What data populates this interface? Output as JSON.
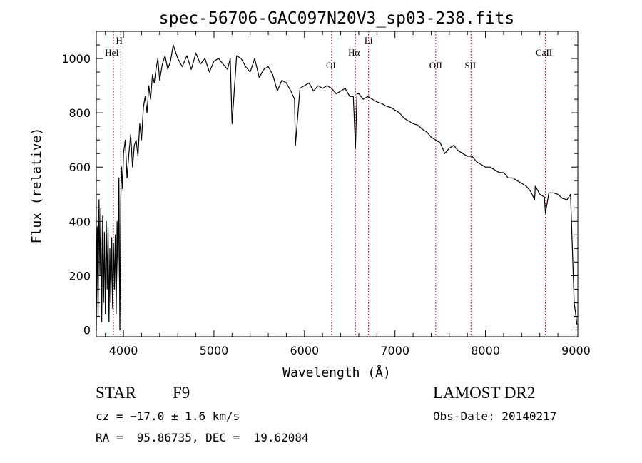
{
  "chart_data": {
    "type": "line",
    "title": "spec-56706-GAC097N20V3_sp03-238.fits",
    "xlabel": "Wavelength (Å)",
    "ylabel": "Flux (relative)",
    "xlim": [
      3700,
      9020
    ],
    "ylim": [
      -25,
      1100
    ],
    "xticks": [
      4000,
      5000,
      6000,
      7000,
      8000,
      9000
    ],
    "yticks": [
      0,
      200,
      400,
      600,
      800,
      1000
    ],
    "xtick_labels": [
      "4000",
      "5000",
      "6000",
      "7000",
      "8000",
      "9000"
    ],
    "ytick_labels": [
      "0",
      "200",
      "400",
      "600",
      "800",
      "1000"
    ],
    "grid": false,
    "line_color": "#000000",
    "marker_color": "#8b0000",
    "series": [
      {
        "x": [
          3700,
          3710,
          3720,
          3730,
          3740,
          3750,
          3760,
          3770,
          3780,
          3790,
          3800,
          3810,
          3820,
          3830,
          3840,
          3850,
          3860,
          3870,
          3880,
          3890,
          3900,
          3910,
          3920,
          3930,
          3940,
          3950,
          3960,
          3970,
          3980,
          3990,
          4000,
          4020,
          4040,
          4060,
          4080,
          4100,
          4120,
          4140,
          4160,
          4180,
          4200,
          4220,
          4240,
          4260,
          4280,
          4300,
          4320,
          4340,
          4360,
          4380,
          4400,
          4430,
          4460,
          4490,
          4520,
          4550,
          4600,
          4650,
          4700,
          4750,
          4800,
          4850,
          4900,
          4950,
          5000,
          5050,
          5100,
          5150,
          5180,
          5200,
          5250,
          5300,
          5350,
          5400,
          5450,
          5500,
          5550,
          5600,
          5650,
          5700,
          5750,
          5800,
          5850,
          5890,
          5900,
          5950,
          6000,
          6050,
          6100,
          6150,
          6200,
          6250,
          6300,
          6350,
          6400,
          6450,
          6500,
          6540,
          6563,
          6580,
          6600,
          6650,
          6700,
          6750,
          6800,
          6850,
          6900,
          6950,
          7000,
          7050,
          7100,
          7150,
          7200,
          7250,
          7300,
          7350,
          7400,
          7450,
          7500,
          7550,
          7600,
          7650,
          7700,
          7750,
          7800,
          7850,
          7900,
          7950,
          8000,
          8050,
          8100,
          8150,
          8200,
          8250,
          8300,
          8350,
          8400,
          8450,
          8500,
          8542,
          8550,
          8600,
          8650,
          8662,
          8700,
          8750,
          8800,
          8850,
          8900,
          8940,
          8960,
          8980,
          9000,
          9010
        ],
        "y": [
          0,
          380,
          50,
          480,
          200,
          450,
          30,
          420,
          100,
          360,
          60,
          400,
          150,
          380,
          30,
          300,
          100,
          340,
          80,
          320,
          150,
          350,
          60,
          400,
          180,
          560,
          0,
          480,
          600,
          520,
          650,
          700,
          560,
          650,
          720,
          600,
          680,
          700,
          640,
          760,
          700,
          820,
          860,
          800,
          900,
          850,
          940,
          910,
          960,
          1000,
          920,
          980,
          1010,
          960,
          990,
          1050,
          1000,
          970,
          1010,
          960,
          1020,
          980,
          1000,
          950,
          990,
          1000,
          980,
          960,
          1000,
          760,
          1010,
          1000,
          970,
          950,
          1000,
          930,
          960,
          970,
          940,
          880,
          920,
          910,
          880,
          850,
          680,
          890,
          900,
          910,
          880,
          900,
          890,
          900,
          890,
          870,
          880,
          890,
          860,
          860,
          670,
          870,
          870,
          850,
          860,
          850,
          840,
          835,
          825,
          820,
          810,
          800,
          780,
          770,
          760,
          755,
          740,
          730,
          710,
          700,
          690,
          650,
          670,
          680,
          660,
          650,
          640,
          640,
          620,
          610,
          600,
          600,
          590,
          580,
          580,
          560,
          560,
          550,
          540,
          530,
          510,
          480,
          530,
          500,
          490,
          430,
          505,
          505,
          500,
          485,
          480,
          500,
          300,
          100,
          50,
          20
        ]
      }
    ],
    "annotations": [
      {
        "label": "HeI",
        "x": 3889
      },
      {
        "label": "H",
        "x": 3970
      },
      {
        "label": "OI",
        "x": 6300
      },
      {
        "label": "Hα",
        "x": 6563
      },
      {
        "label": "Li",
        "x": 6708
      },
      {
        "label": "OII",
        "x": 7450
      },
      {
        "label": "SII",
        "x": 7840
      },
      {
        "label": "CaII",
        "x": 8662
      }
    ]
  },
  "info": {
    "object_type": "STAR",
    "subclass": "F9",
    "survey": "LAMOST DR2",
    "cz": "cz = −17.0 ± 1.6 km/s",
    "obs_date": "Obs-Date: 20140217",
    "coords": "RA =  95.86735, DEC =  19.62084"
  }
}
